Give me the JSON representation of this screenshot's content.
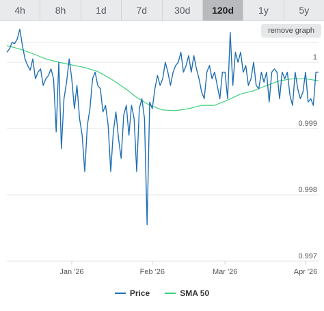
{
  "tabs": [
    {
      "label": "4h",
      "active": false
    },
    {
      "label": "8h",
      "active": false
    },
    {
      "label": "1d",
      "active": false
    },
    {
      "label": "7d",
      "active": false
    },
    {
      "label": "30d",
      "active": false
    },
    {
      "label": "120d",
      "active": true
    },
    {
      "label": "1y",
      "active": false
    },
    {
      "label": "5y",
      "active": false
    }
  ],
  "remove_graph_label": "remove graph",
  "colors": {
    "price": "#1f6fb2",
    "sma": "#3ecf7a",
    "grid": "#e6e6e6",
    "axis_text": "#555555"
  },
  "chart_data": {
    "type": "line",
    "title": "",
    "xlabel": "",
    "ylabel": "",
    "ylim": [
      0.997,
      1.0003
    ],
    "xlim": [
      0,
      120
    ],
    "yticks": [
      {
        "value": 1.0,
        "label": "1"
      },
      {
        "value": 0.999,
        "label": "0.999"
      },
      {
        "value": 0.998,
        "label": "0.998"
      },
      {
        "value": 0.997,
        "label": "0.997"
      }
    ],
    "xticks": [
      {
        "value": 25,
        "label": "Jan '26"
      },
      {
        "value": 56,
        "label": "Feb '26"
      },
      {
        "value": 84,
        "label": "Mar '26"
      },
      {
        "value": 115,
        "label": "Apr '26"
      }
    ],
    "grid": true,
    "legend_position": "bottom",
    "series": [
      {
        "name": "Price",
        "x": [
          0,
          1,
          2,
          3,
          4,
          5,
          6,
          7,
          8,
          9,
          10,
          11,
          12,
          13,
          14,
          15,
          16,
          17,
          18,
          19,
          20,
          21,
          22,
          23,
          24,
          25,
          26,
          27,
          28,
          29,
          30,
          31,
          32,
          33,
          34,
          35,
          36,
          37,
          38,
          39,
          40,
          41,
          42,
          43,
          44,
          45,
          46,
          47,
          48,
          49,
          50,
          51,
          52,
          53,
          54,
          55,
          56,
          57,
          58,
          59,
          60,
          61,
          62,
          63,
          64,
          65,
          66,
          67,
          68,
          69,
          70,
          71,
          72,
          73,
          74,
          75,
          76,
          77,
          78,
          79,
          80,
          81,
          82,
          83,
          84,
          85,
          86,
          87,
          88,
          89,
          90,
          91,
          92,
          93,
          94,
          95,
          96,
          97,
          98,
          99,
          100,
          101,
          102,
          103,
          104,
          105,
          106,
          107,
          108,
          109,
          110,
          111,
          112,
          113,
          114,
          115,
          116,
          117,
          118,
          119,
          120
        ],
        "y": [
          1.00015,
          1.0002,
          1.0003,
          1.00028,
          1.00035,
          1.0005,
          1.00025,
          1.00005,
          0.99995,
          0.99988,
          1.00005,
          0.99975,
          0.99985,
          0.9999,
          0.99965,
          0.99975,
          0.9998,
          0.9999,
          0.99975,
          0.99895,
          1.0,
          0.9987,
          0.99945,
          0.9997,
          1.00005,
          0.99975,
          0.9993,
          0.99965,
          0.99915,
          0.9989,
          0.99835,
          0.99905,
          0.9993,
          0.99975,
          0.99985,
          0.99965,
          0.9996,
          0.99925,
          0.99935,
          0.99905,
          0.99835,
          0.99895,
          0.99925,
          0.99885,
          0.99855,
          0.9992,
          0.99935,
          0.9989,
          0.99935,
          0.99915,
          0.99835,
          0.9993,
          0.99945,
          0.99915,
          0.99755,
          0.9994,
          0.9993,
          0.9996,
          0.9998,
          0.99965,
          0.99975,
          1.0,
          0.99985,
          0.99965,
          0.99985,
          0.99995,
          1.0,
          1.00015,
          0.99985,
          0.99995,
          1.0001,
          0.99985,
          1.0001,
          0.9999,
          0.99975,
          0.99955,
          0.99945,
          0.99985,
          0.99995,
          0.99975,
          0.99985,
          0.99965,
          0.99945,
          0.99985,
          0.99985,
          0.99945,
          1.00045,
          0.99965,
          1.00015,
          1.0,
          1.00015,
          0.99985,
          0.99995,
          0.99965,
          0.99975,
          1.0,
          0.99965,
          0.9996,
          0.99985,
          0.9997,
          0.99985,
          0.9994,
          0.99985,
          0.9999,
          0.99985,
          0.99945,
          0.99985,
          0.99975,
          0.99985,
          0.9995,
          0.99935,
          0.99985,
          0.9996,
          0.99945,
          0.99955,
          0.99985,
          0.9994,
          0.99945,
          0.99935,
          0.99985,
          0.99985
        ]
      },
      {
        "name": "SMA 50",
        "x": [
          0,
          5,
          10,
          15,
          20,
          25,
          30,
          35,
          40,
          45,
          50,
          55,
          60,
          65,
          70,
          75,
          80,
          85,
          90,
          95,
          100,
          105,
          110,
          115,
          120
        ],
        "y": [
          1.00025,
          1.0002,
          1.00013,
          1.00005,
          1.0,
          0.99996,
          0.99992,
          0.99986,
          0.99975,
          0.99962,
          0.99947,
          0.99935,
          0.99928,
          0.99927,
          0.9993,
          0.99935,
          0.99935,
          0.99943,
          0.99952,
          0.99957,
          0.99965,
          0.99972,
          0.99975,
          0.99975,
          0.99972
        ]
      }
    ]
  }
}
